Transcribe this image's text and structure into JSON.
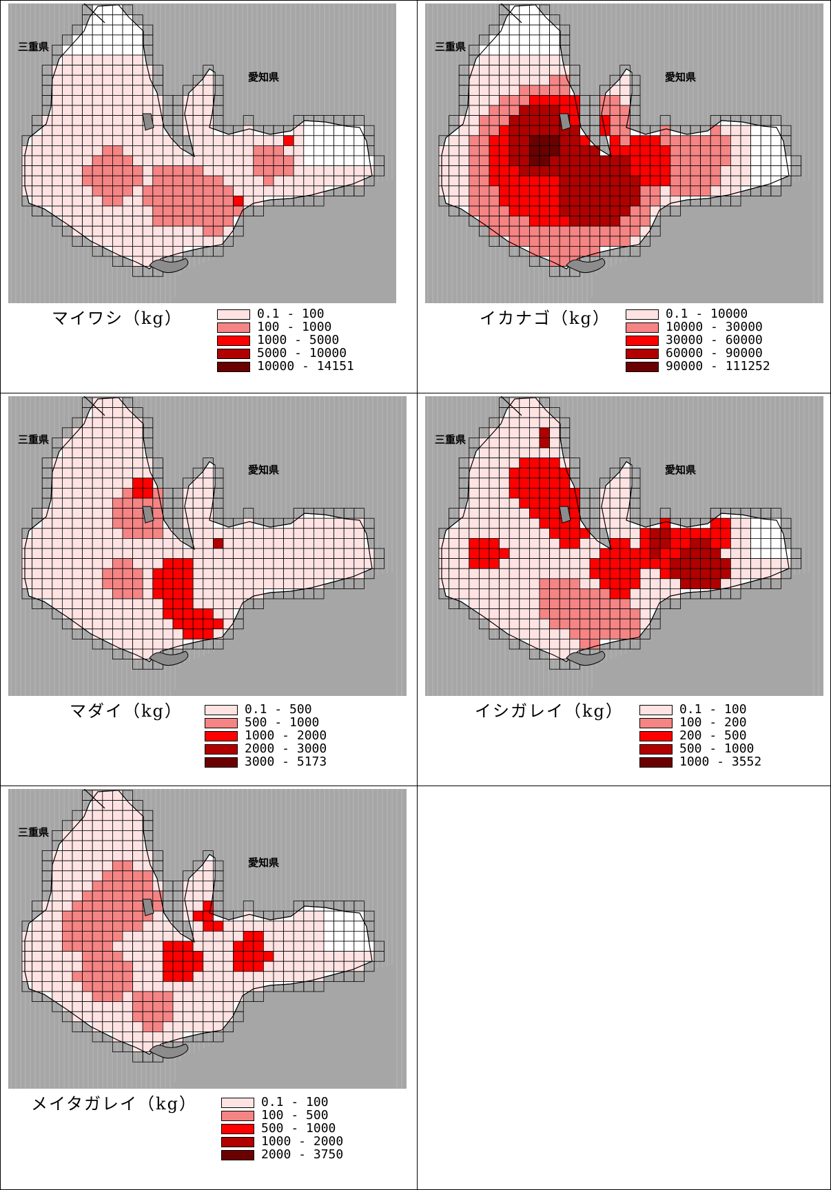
{
  "labels": {
    "mie": "三重県",
    "aichi": "愛知県"
  },
  "colors": {
    "background": "#a6a6a6",
    "land_stripe": "#c8c8c8",
    "sea_empty": "#ffffff",
    "class1": "#ffe3e3",
    "class2": "#f58484",
    "class3": "#ff0000",
    "class4": "#b00000",
    "class5": "#6b0000"
  },
  "panels": [
    {
      "title": "マイワシ（kg）",
      "legend": [
        "0.1 - 100",
        "100 - 1000",
        "1000 - 5000",
        "5000 - 10000",
        "10000 - 14151"
      ],
      "pattern": "iwashi"
    },
    {
      "title": "イカナゴ（kg）",
      "legend": [
        "0.1 - 10000",
        "10000 - 30000",
        "30000 - 60000",
        "60000 - 90000",
        "90000 - 111252"
      ],
      "pattern": "ikanago"
    },
    {
      "title": "マダイ（kg）",
      "legend": [
        "0.1 - 500",
        "500 - 1000",
        "1000 - 2000",
        "2000 - 3000",
        "3000 - 5173"
      ],
      "pattern": "madai"
    },
    {
      "title": "イシガレイ（kg）",
      "legend": [
        "0.1 - 100",
        "100 - 200",
        "200 - 500",
        "500 - 1000",
        "1000 - 3552"
      ],
      "pattern": "ishigarei"
    },
    {
      "title": "メイタガレイ（kg）",
      "legend": [
        "0.1 - 100",
        "100 - 500",
        "500 - 1000",
        "1000 - 2000",
        "2000 - 3750"
      ],
      "pattern": "meitagarei"
    }
  ]
}
